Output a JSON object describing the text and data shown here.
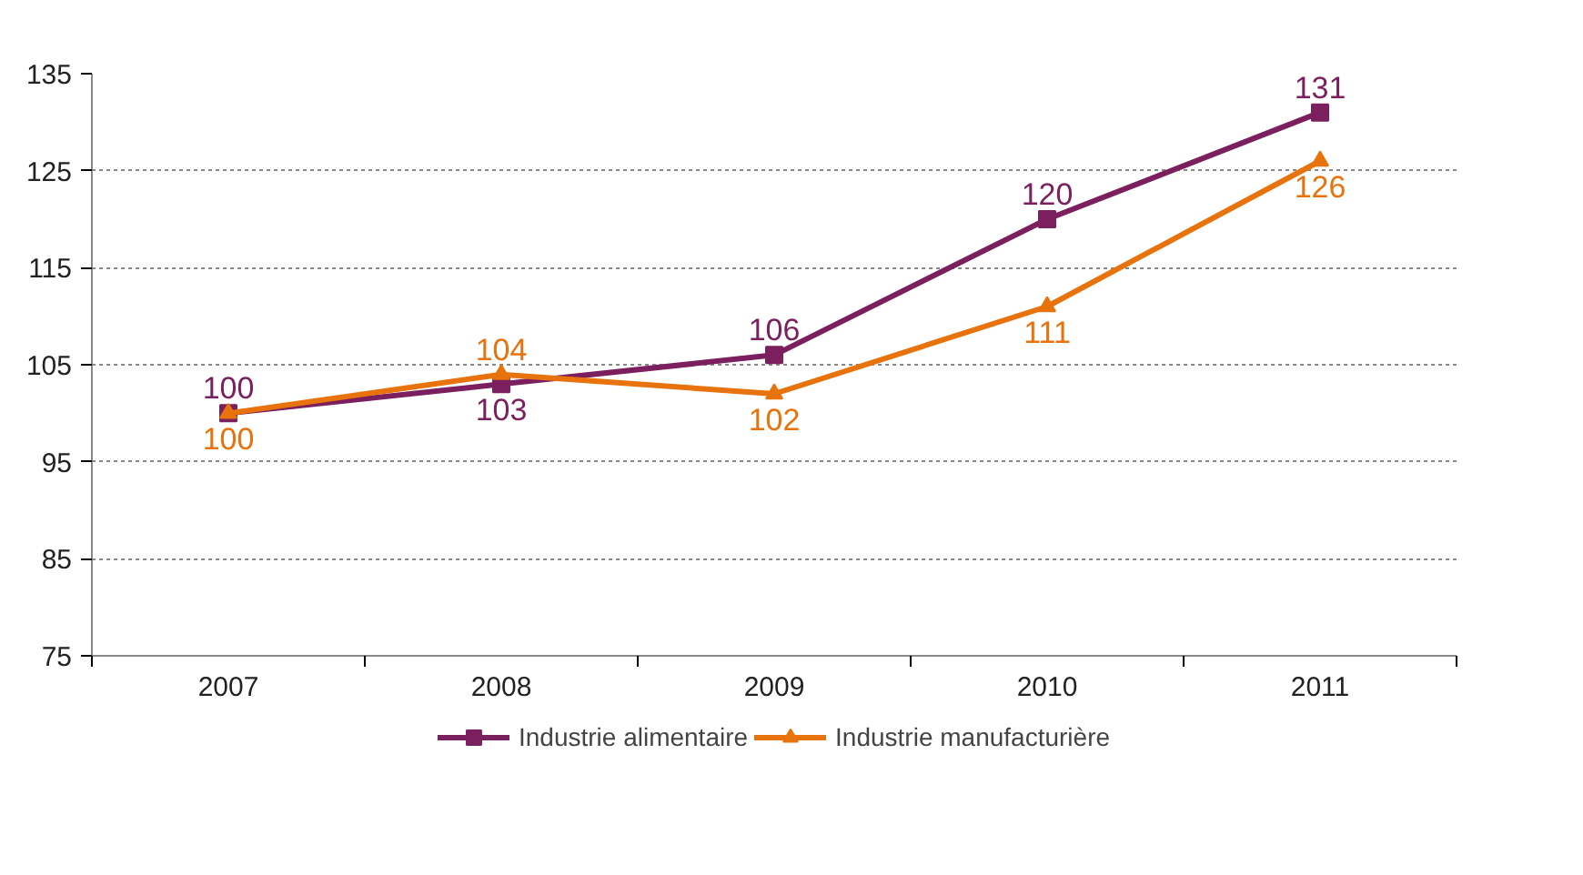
{
  "chart_data": {
    "type": "line",
    "categories": [
      "2007",
      "2008",
      "2009",
      "2010",
      "2011"
    ],
    "series": [
      {
        "name": "Industrie alimentaire",
        "color": "#7b1f5e",
        "marker": "square",
        "values": [
          100,
          103,
          106,
          120,
          131
        ]
      },
      {
        "name": "Industrie manufacturière",
        "color": "#e8730c",
        "marker": "triangle",
        "values": [
          100,
          104,
          102,
          111,
          126
        ]
      }
    ],
    "ylim": [
      75,
      135
    ],
    "yticks": [
      75,
      85,
      95,
      105,
      115,
      125,
      135
    ],
    "grid": "y",
    "legend": "bottom",
    "data_labels": true,
    "line_style": "solid"
  }
}
